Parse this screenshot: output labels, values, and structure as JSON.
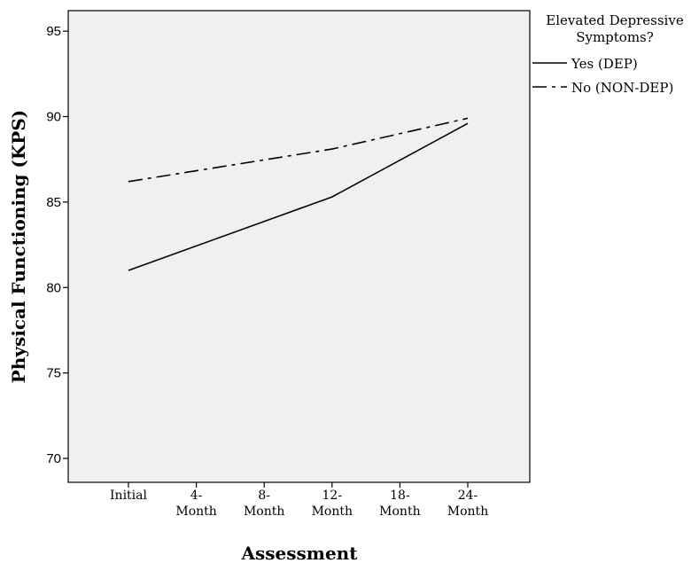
{
  "chart_data": {
    "type": "line",
    "title": "",
    "xlabel": "Assessment",
    "ylabel": "Physical Functioning (KPS)",
    "categories": [
      [
        "Initial"
      ],
      [
        "4-",
        "Month"
      ],
      [
        "8-",
        "Month"
      ],
      [
        "12-",
        "Month"
      ],
      [
        "18-",
        "Month"
      ],
      [
        "24-",
        "Month"
      ]
    ],
    "ylim": [
      68.6,
      96.2
    ],
    "yticks": [
      70,
      75,
      80,
      85,
      90,
      95
    ],
    "grid": false,
    "legend": {
      "title_lines": [
        "Elevated Depressive",
        "Symptoms?"
      ],
      "placement": "right-top"
    },
    "series": [
      {
        "name": "Yes (DEP)",
        "style": "solid",
        "color": "#000000",
        "points": [
          {
            "x": "Initial",
            "y": 81.0
          },
          {
            "x": "12-Month",
            "y": 85.3
          },
          {
            "x": "24-Month",
            "y": 89.6
          }
        ]
      },
      {
        "name": "No (NON-DEP)",
        "style": "dash-dot",
        "color": "#000000",
        "points": [
          {
            "x": "Initial",
            "y": 86.2
          },
          {
            "x": "12-Month",
            "y": 88.1
          },
          {
            "x": "24-Month",
            "y": 89.9
          }
        ]
      }
    ],
    "plot_background": "#f0f0f0"
  }
}
